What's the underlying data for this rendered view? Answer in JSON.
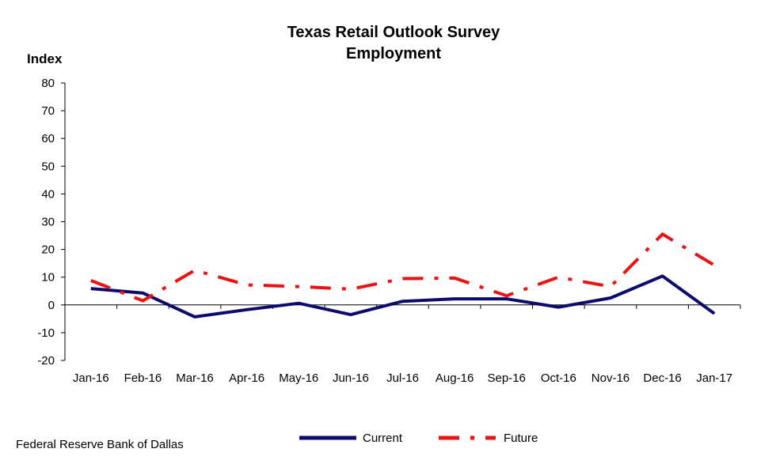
{
  "source_note": "Federal Reserve Bank of Dallas",
  "colors": {
    "current": "#0b0b6e",
    "future": "#ee1111",
    "axis": "#000000"
  },
  "chart_data": {
    "type": "line",
    "title": "Texas Retail Outlook Survey",
    "subtitle": "Employment",
    "ylabel": "Index",
    "xlabel": "",
    "ylim": [
      -20,
      80
    ],
    "yticks": [
      -20,
      -10,
      0,
      10,
      20,
      30,
      40,
      50,
      60,
      70,
      80
    ],
    "grid": false,
    "legend_position": "bottom",
    "categories": [
      "Jan-16",
      "Feb-16",
      "Mar-16",
      "Apr-16",
      "May-16",
      "Jun-16",
      "Jul-16",
      "Aug-16",
      "Sep-16",
      "Oct-16",
      "Nov-16",
      "Dec-16",
      "Jan-17"
    ],
    "series": [
      {
        "name": "Current",
        "style": "solid",
        "color": "#0b0b6e",
        "values": [
          5.9,
          4.3,
          -4.3,
          -1.7,
          0.6,
          -3.5,
          1.3,
          2.2,
          2.2,
          -0.8,
          2.5,
          10.4,
          -3.1
        ]
      },
      {
        "name": "Future",
        "style": "dash-dot",
        "color": "#ee1111",
        "values": [
          8.8,
          1.5,
          12.5,
          7.2,
          6.6,
          5.7,
          9.5,
          9.7,
          3.3,
          10.0,
          6.6,
          25.5,
          14.3
        ]
      }
    ]
  }
}
